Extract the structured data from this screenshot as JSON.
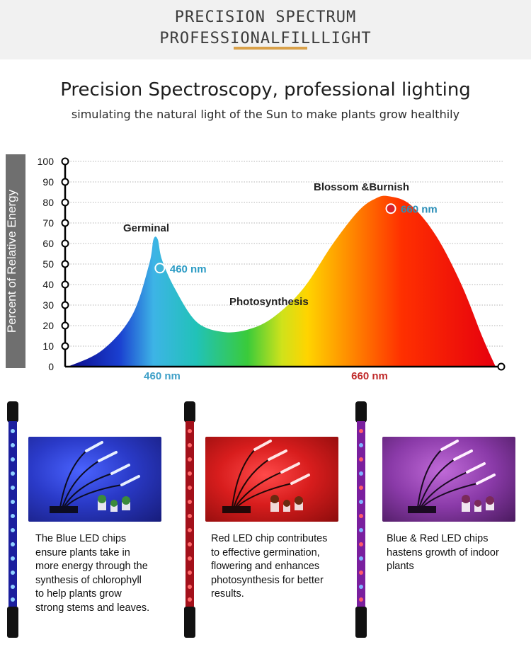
{
  "banner": {
    "line1": "PRECISION SPECTRUM",
    "line2": "PROFESSIONALFILLLIGHT"
  },
  "header": {
    "title": "Precision Spectroscopy, professional lighting",
    "subtitle": "simulating the natural light of the Sun to make plants grow healthily"
  },
  "chart_data": {
    "type": "area",
    "ylabel": "Percent of Relative Energy",
    "ylim": [
      0,
      100
    ],
    "yticks": [
      "100",
      "90",
      "80",
      "70",
      "60",
      "50",
      "40",
      "30",
      "20",
      "10",
      "0"
    ],
    "xtick_labels": [
      "460 nm",
      "660 nm"
    ],
    "grid": true,
    "curve": [
      [
        0,
        0
      ],
      [
        8,
        8
      ],
      [
        15,
        25
      ],
      [
        19,
        50
      ],
      [
        20,
        62
      ],
      [
        21,
        62
      ],
      [
        22,
        52
      ],
      [
        25,
        38
      ],
      [
        30,
        22
      ],
      [
        36,
        17
      ],
      [
        42,
        18
      ],
      [
        48,
        24
      ],
      [
        55,
        38
      ],
      [
        62,
        60
      ],
      [
        68,
        76
      ],
      [
        72,
        82
      ],
      [
        75,
        83
      ],
      [
        80,
        79
      ],
      [
        86,
        64
      ],
      [
        92,
        40
      ],
      [
        97,
        14
      ],
      [
        100,
        0
      ]
    ],
    "annotations": [
      {
        "label": "Germinal",
        "point_label": "460 nm",
        "x": 21.5,
        "y": 48,
        "color": "#3fb4d8"
      },
      {
        "label": "Blossom &Burnish",
        "point_label": "660 nm",
        "x": 75.5,
        "y": 77,
        "color": "#d8222a"
      },
      {
        "label": "Photosynthesis"
      }
    ]
  },
  "panels": [
    {
      "caption": [
        "The Blue LED chips",
        "ensure plants take in",
        "more energy through the",
        "synthesis of chlorophyll",
        "to help plants grow",
        "strong stems and leaves."
      ],
      "tone": "blue"
    },
    {
      "caption": [
        "Red LED chip contributes",
        "to effective germination,",
        "flowering and enhances",
        "photosynthesis for better",
        "results."
      ],
      "tone": "red"
    },
    {
      "caption": [
        "Blue & Red LED chips",
        "hastens growth of indoor",
        "plants"
      ],
      "tone": "purple"
    }
  ]
}
